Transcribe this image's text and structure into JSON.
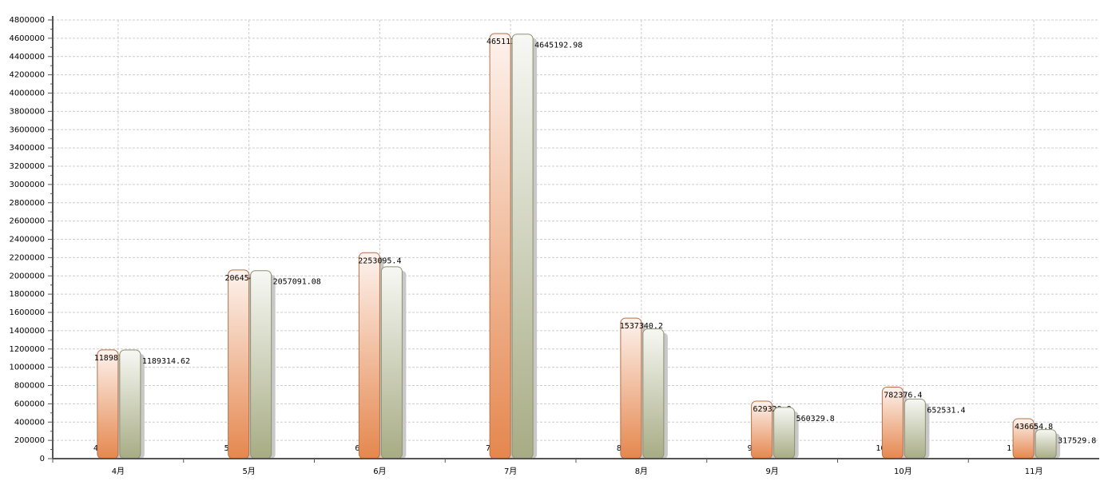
{
  "chart_data": {
    "type": "bar",
    "categories": [
      "4月",
      "5月",
      "6月",
      "7月",
      "8月",
      "9月",
      "10月",
      "11月"
    ],
    "series": [
      {
        "color": "#2f4f9f",
        "values": [
          4,
          5,
          6,
          7,
          8,
          9,
          10,
          11
        ]
      },
      {
        "color": "#e5874e",
        "values": [
          1189813.42,
          2064547.08,
          2253095.4,
          4651139.78,
          1537340.2,
          629329.8,
          782376.4,
          436654.8
        ]
      },
      {
        "color": "#a7ac84",
        "values": [
          1189314.62,
          2057091.08,
          2100000,
          4645192.98,
          1420000,
          560329.8,
          652531.4,
          317529.8
        ],
        "value_labels": [
          "1189314.62",
          "2057091.08",
          null,
          "4645192.98",
          null,
          "560329.8",
          "652531.4",
          "317529.8"
        ]
      }
    ],
    "ylim": [
      0,
      4800000
    ],
    "yticks": [
      0,
      200000,
      400000,
      600000,
      800000,
      1000000,
      1200000,
      1400000,
      1600000,
      1800000,
      2000000,
      2200000,
      2400000,
      2600000,
      2800000,
      3000000,
      3200000,
      3400000,
      3600000,
      3800000,
      4000000,
      4200000,
      4400000,
      4600000,
      4800000
    ],
    "grid": true
  }
}
